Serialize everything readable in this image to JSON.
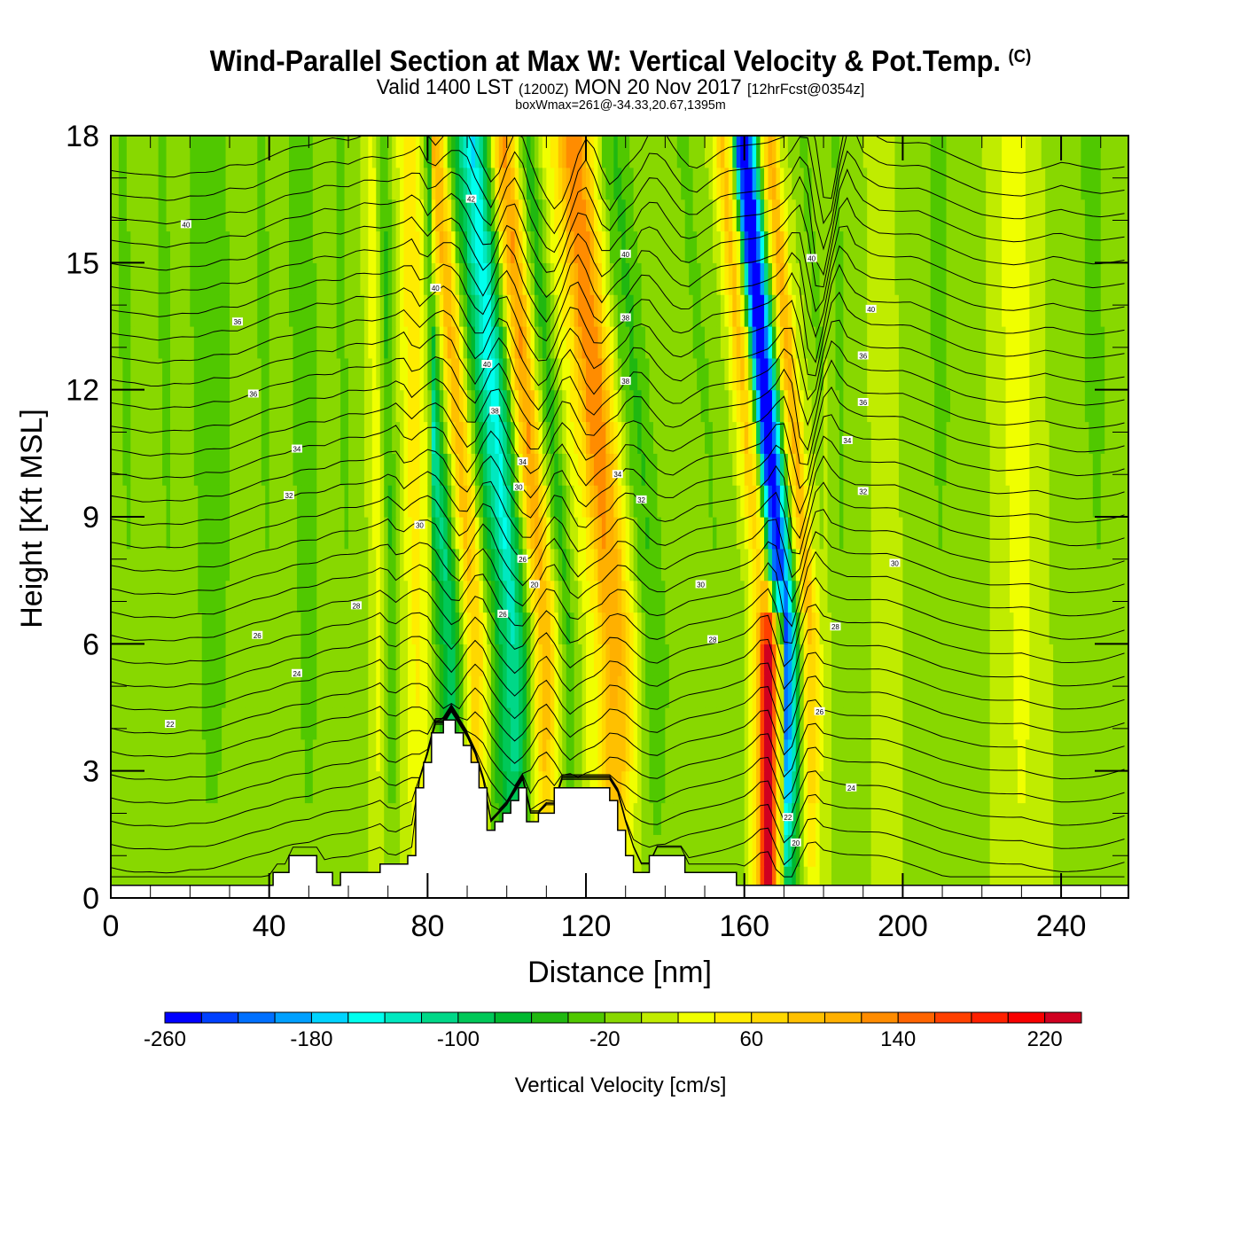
{
  "title": {
    "line1": "Wind-Parallel Section at Max W: Vertical Velocity & Pot.Temp.",
    "copyright": "(C)",
    "line2_a": "Valid 1400 LST",
    "line2_b": "(1200Z)",
    "line2_c": "MON 20 Nov 2017",
    "line2_d": "[12hrFcst@0354z]",
    "line3": "boxWmax=261@-34.33,20.67,1395m"
  },
  "chart_data": {
    "type": "heatmap",
    "title": "Wind-Parallel Section at Max W: Vertical Velocity & Pot.Temp.",
    "xlabel": "Distance [nm]",
    "ylabel": "Height [Kft MSL]",
    "xlim": [
      0,
      257
    ],
    "ylim": [
      0,
      18
    ],
    "xticks": [
      0,
      40,
      80,
      120,
      160,
      200,
      240
    ],
    "xtick_labels": [
      "0",
      "40",
      "80",
      "120",
      "160",
      "200",
      "240"
    ],
    "yticks": [
      0,
      3,
      6,
      9,
      12,
      15,
      18
    ],
    "ytick_labels": [
      "0",
      "3",
      "6",
      "9",
      "12",
      "15",
      "18"
    ],
    "colorbar": {
      "label": "Vertical Velocity [cm/s]",
      "min": -260,
      "max": 260,
      "step": 20,
      "tick_labels": [
        "-260",
        "-180",
        "-100",
        "-20",
        "60",
        "140",
        "220"
      ],
      "tick_values": [
        -260,
        -180,
        -100,
        -20,
        60,
        140,
        220
      ],
      "colors": [
        "#0000ff",
        "#0040ff",
        "#0070ff",
        "#00a0ff",
        "#00d4ff",
        "#00ffee",
        "#00e8c0",
        "#00d888",
        "#00c858",
        "#00b830",
        "#20b810",
        "#50c800",
        "#88d800",
        "#c0ec00",
        "#f0ff00",
        "#ffec00",
        "#ffd800",
        "#ffc000",
        "#ffb000",
        "#ff8c00",
        "#ff6400",
        "#ff4000",
        "#ff2000",
        "#f80000",
        "#d00020"
      ]
    },
    "w_profile_cm_s": {
      "x": [
        0,
        5,
        10,
        15,
        20,
        25,
        30,
        35,
        40,
        45,
        50,
        55,
        60,
        65,
        68,
        71,
        74,
        77,
        80,
        82,
        84,
        86,
        88,
        90,
        92,
        94,
        96,
        98,
        100,
        102,
        104,
        106,
        108,
        110,
        112,
        114,
        116,
        118,
        120,
        123,
        126,
        129,
        132,
        135,
        138,
        141,
        145,
        150,
        155,
        160,
        163,
        165,
        167,
        169,
        171,
        173,
        175,
        177,
        180,
        185,
        190,
        195,
        200,
        210,
        220,
        230,
        240,
        250,
        257
      ],
      "values": [
        -10,
        -20,
        -10,
        -20,
        -10,
        -30,
        -20,
        -10,
        -20,
        -10,
        -30,
        -10,
        -20,
        0,
        30,
        -40,
        10,
        50,
        30,
        -30,
        -70,
        -110,
        -50,
        30,
        90,
        60,
        -20,
        -70,
        -110,
        -140,
        -90,
        -20,
        70,
        110,
        60,
        -10,
        -50,
        -10,
        20,
        50,
        120,
        110,
        40,
        -20,
        -40,
        -20,
        0,
        -10,
        -20,
        -10,
        30,
        80,
        20,
        -200,
        -250,
        -120,
        30,
        100,
        10,
        -20,
        -10,
        10,
        0,
        -20,
        -10,
        30,
        -10,
        -20,
        -10
      ]
    },
    "lower_w_profile_cm_s": {
      "x": [
        160,
        163,
        165,
        166,
        167,
        168,
        170
      ],
      "values": [
        -10,
        60,
        200,
        240,
        200,
        80,
        -20
      ]
    },
    "terrain_kft": {
      "x": [
        0,
        41,
        41,
        45,
        45,
        52,
        52,
        56,
        56,
        58,
        58,
        68,
        68,
        75,
        75,
        77,
        77,
        79,
        79,
        81,
        81,
        84,
        84,
        87,
        87,
        89,
        89,
        91,
        91,
        93,
        93,
        95,
        95,
        97,
        97,
        99,
        99,
        101,
        101,
        103,
        103,
        105,
        105,
        108,
        108,
        112,
        112,
        116,
        116,
        126,
        126,
        128,
        128,
        130,
        130,
        132,
        132,
        136,
        136,
        145,
        145,
        158,
        158,
        164,
        164,
        257
      ],
      "y": [
        0.3,
        0.3,
        0.6,
        0.6,
        1.0,
        1.0,
        0.6,
        0.6,
        0.3,
        0.3,
        0.6,
        0.6,
        0.8,
        0.8,
        1.0,
        1.0,
        2.6,
        2.6,
        3.2,
        3.2,
        3.9,
        3.9,
        4.2,
        4.2,
        3.9,
        3.9,
        3.6,
        3.6,
        3.2,
        3.2,
        2.6,
        2.6,
        1.6,
        1.6,
        1.8,
        1.8,
        2.0,
        2.0,
        2.3,
        2.3,
        2.6,
        2.6,
        1.8,
        1.8,
        2.0,
        2.0,
        2.6,
        2.6,
        2.6,
        2.6,
        2.3,
        2.3,
        1.6,
        1.6,
        1.0,
        1.0,
        0.6,
        0.6,
        1.0,
        1.0,
        0.6,
        0.6,
        0.3,
        0.3,
        0.3,
        0.3
      ]
    },
    "theta_contours": {
      "levels": [
        20,
        22,
        24,
        26,
        28,
        30,
        32,
        34,
        36,
        38,
        40,
        42
      ],
      "labels": [
        {
          "text": "40",
          "x": 19,
          "y": 15.9
        },
        {
          "text": "36",
          "x": 32,
          "y": 13.6
        },
        {
          "text": "36",
          "x": 36,
          "y": 11.9
        },
        {
          "text": "34",
          "x": 47,
          "y": 10.6
        },
        {
          "text": "32",
          "x": 45,
          "y": 9.5
        },
        {
          "text": "30",
          "x": 78,
          "y": 8.8
        },
        {
          "text": "28",
          "x": 62,
          "y": 6.9
        },
        {
          "text": "26",
          "x": 37,
          "y": 6.2
        },
        {
          "text": "24",
          "x": 47,
          "y": 5.3
        },
        {
          "text": "22",
          "x": 15,
          "y": 4.1
        },
        {
          "text": "42",
          "x": 91,
          "y": 16.5
        },
        {
          "text": "40",
          "x": 82,
          "y": 14.4
        },
        {
          "text": "40",
          "x": 95,
          "y": 12.6
        },
        {
          "text": "38",
          "x": 97,
          "y": 11.5
        },
        {
          "text": "34",
          "x": 104,
          "y": 10.3
        },
        {
          "text": "30",
          "x": 103,
          "y": 9.7
        },
        {
          "text": "26",
          "x": 104,
          "y": 8.0
        },
        {
          "text": "20",
          "x": 107,
          "y": 7.4
        },
        {
          "text": "26",
          "x": 99,
          "y": 6.7
        },
        {
          "text": "40",
          "x": 130,
          "y": 15.2
        },
        {
          "text": "38",
          "x": 130,
          "y": 13.7
        },
        {
          "text": "38",
          "x": 130,
          "y": 12.2
        },
        {
          "text": "34",
          "x": 128,
          "y": 10.0
        },
        {
          "text": "32",
          "x": 134,
          "y": 9.4
        },
        {
          "text": "30",
          "x": 149,
          "y": 7.4
        },
        {
          "text": "28",
          "x": 152,
          "y": 6.1
        },
        {
          "text": "40",
          "x": 177,
          "y": 15.1
        },
        {
          "text": "40",
          "x": 192,
          "y": 13.9
        },
        {
          "text": "36",
          "x": 190,
          "y": 12.8
        },
        {
          "text": "36",
          "x": 190,
          "y": 11.7
        },
        {
          "text": "34",
          "x": 186,
          "y": 10.8
        },
        {
          "text": "32",
          "x": 190,
          "y": 9.6
        },
        {
          "text": "30",
          "x": 198,
          "y": 7.9
        },
        {
          "text": "28",
          "x": 183,
          "y": 6.4
        },
        {
          "text": "26",
          "x": 179,
          "y": 4.4
        },
        {
          "text": "24",
          "x": 187,
          "y": 2.6
        },
        {
          "text": "22",
          "x": 171,
          "y": 1.9
        },
        {
          "text": "20",
          "x": 173,
          "y": 1.3
        }
      ]
    }
  }
}
